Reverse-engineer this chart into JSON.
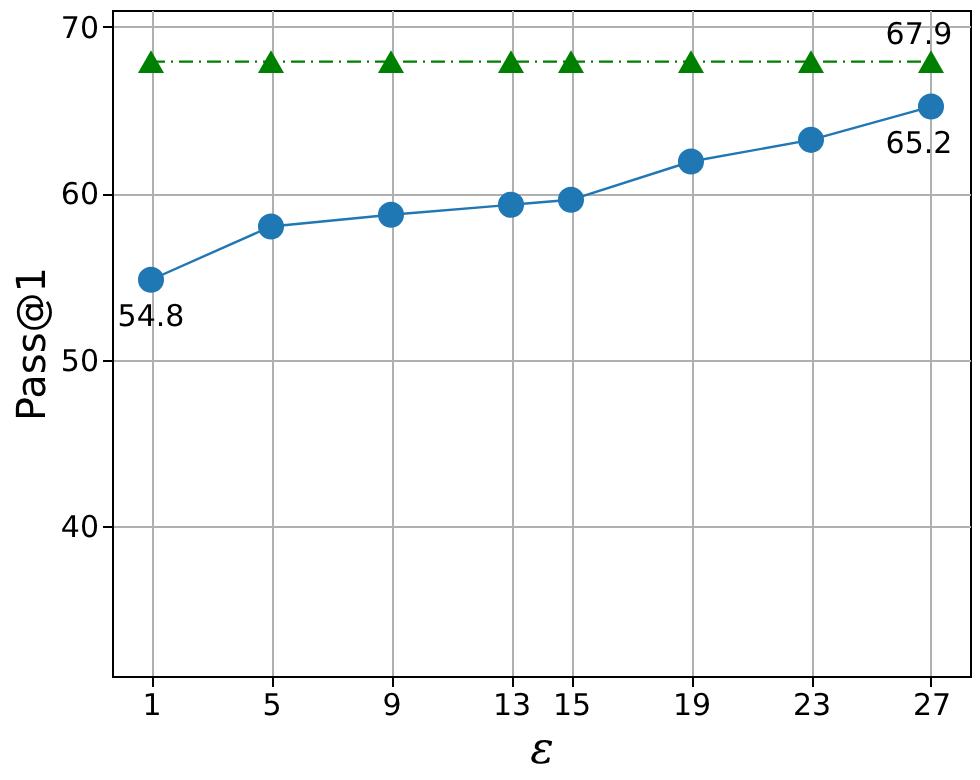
{
  "chart_data": {
    "type": "line",
    "xlabel": "ε",
    "ylabel": "Pass@1",
    "x": [
      1,
      5,
      9,
      13,
      15,
      19,
      23,
      27
    ],
    "series": [
      {
        "color": "#1f77b4",
        "marker": "circle",
        "line_style": "solid",
        "values": [
          54.8,
          58.0,
          58.7,
          59.3,
          59.6,
          61.9,
          63.2,
          65.2
        ],
        "value_labels": [
          "54.8",
          null,
          null,
          null,
          null,
          null,
          null,
          "65.2"
        ]
      },
      {
        "color": "#008000",
        "marker": "triangle",
        "line_style": "dashed",
        "values": [
          67.9,
          67.9,
          67.9,
          67.9,
          67.9,
          67.9,
          67.9,
          67.9
        ],
        "value_labels": [
          null,
          null,
          null,
          null,
          null,
          null,
          null,
          "67.9"
        ]
      }
    ],
    "xlim": [
      -0.3,
      28.3
    ],
    "xticks": [
      1,
      5,
      9,
      13,
      15,
      19,
      23,
      27
    ],
    "ylim": [
      31,
      71
    ],
    "yticks": [
      40,
      50,
      60,
      70
    ],
    "grid": true
  }
}
